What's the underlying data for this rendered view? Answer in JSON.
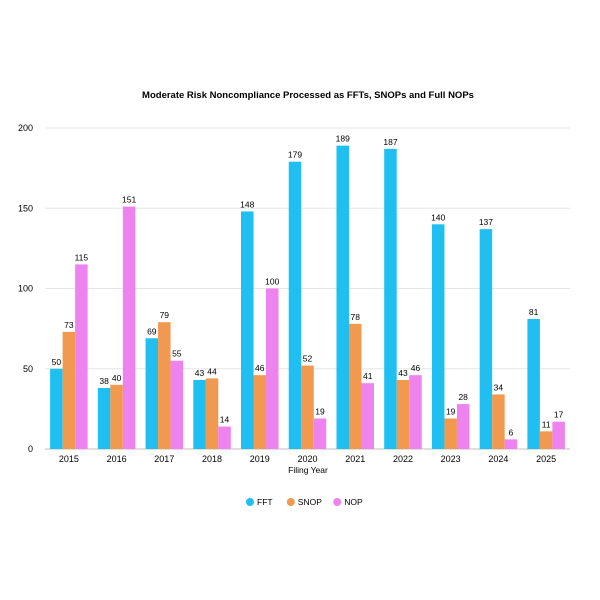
{
  "chart_data": {
    "type": "bar",
    "title": "Moderate Risk Noncompliance Processed as FFTs, SNOPs and Full NOPs",
    "xlabel": "Filing Year",
    "ylabel": "",
    "categories": [
      "2015",
      "2016",
      "2017",
      "2018",
      "2019",
      "2020",
      "2021",
      "2022",
      "2023",
      "2024",
      "2025"
    ],
    "series": [
      {
        "name": "FFT",
        "color": "#1fbff1",
        "values": [
          50,
          38,
          69,
          43,
          148,
          179,
          189,
          187,
          140,
          137,
          81
        ]
      },
      {
        "name": "SNOP",
        "color": "#f0994f",
        "values": [
          73,
          40,
          79,
          44,
          46,
          52,
          78,
          43,
          19,
          34,
          11
        ]
      },
      {
        "name": "NOP",
        "color": "#ee82ee",
        "values": [
          115,
          151,
          55,
          14,
          100,
          19,
          41,
          46,
          28,
          6,
          17
        ]
      }
    ],
    "ylim": [
      0,
      200
    ],
    "yticks": [
      0,
      50,
      100,
      150,
      200
    ],
    "grid": true,
    "legend_position": "bottom-center",
    "data_labels": true
  }
}
